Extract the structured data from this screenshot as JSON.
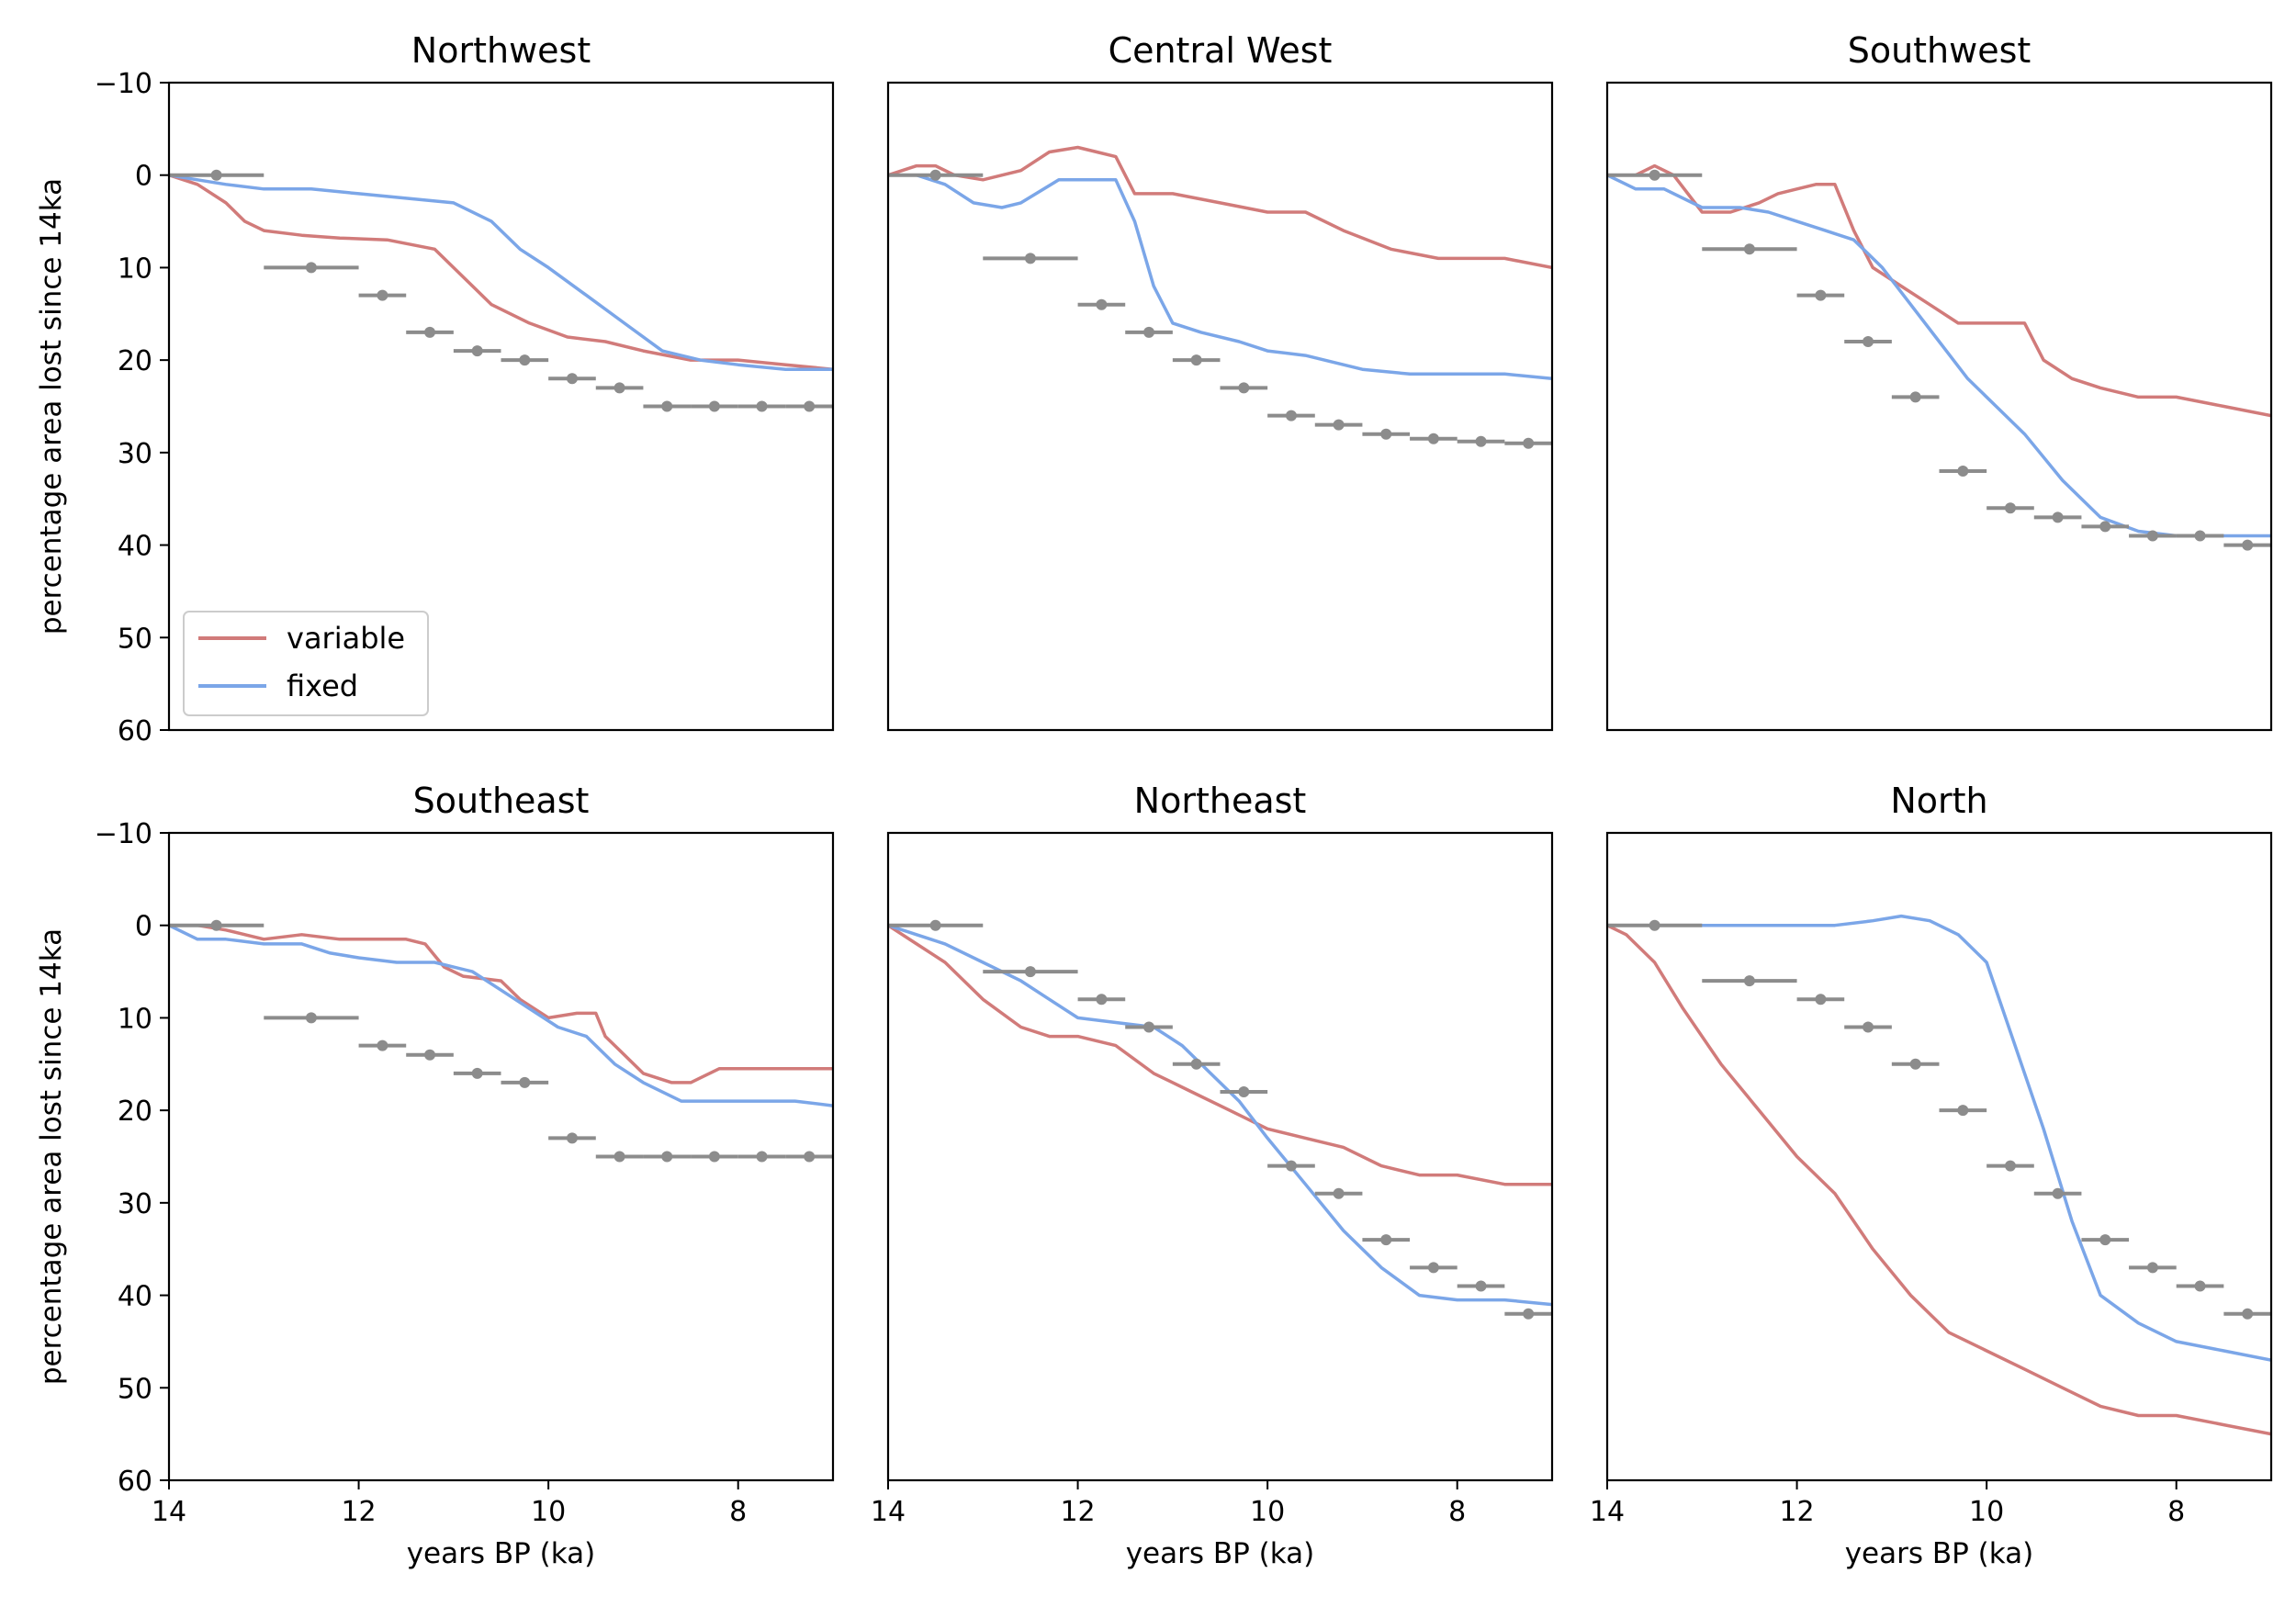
{
  "chart_data": {
    "type": "line",
    "layout": "2x3 grid, shared x and y axes",
    "xlabel": "years BP (ka)",
    "ylabel": "percentage area lost since 14ka",
    "xlim": [
      14,
      7
    ],
    "ylim": [
      60,
      -10
    ],
    "x_ticks": [
      14,
      12,
      10,
      8
    ],
    "y_ticks": [
      -10,
      0,
      10,
      20,
      30,
      40,
      50,
      60
    ],
    "y_tick_labels": [
      "−10",
      "0",
      "10",
      "20",
      "30",
      "40",
      "50",
      "60"
    ],
    "grid": false,
    "legend": {
      "location": "lower-left of first panel",
      "entries": [
        "variable",
        "fixed"
      ]
    },
    "colors": {
      "variable": "#d17b7a",
      "fixed": "#7ba6e8",
      "observations": "#8c8c8c"
    },
    "panels": [
      {
        "title": "Northwest",
        "series": [
          {
            "name": "variable",
            "x": [
              14,
              13.7,
              13.4,
              13.2,
              13.0,
              12.6,
              12.2,
              11.7,
              11.2,
              10.9,
              10.6,
              10.2,
              9.8,
              9.4,
              9.0,
              8.5,
              8.0,
              7.5,
              7.0
            ],
            "y": [
              0,
              1,
              3,
              5,
              6,
              6.5,
              6.8,
              7,
              8,
              11,
              14,
              16,
              17.5,
              18,
              19,
              20,
              20,
              20.5,
              21
            ]
          },
          {
            "name": "fixed",
            "x": [
              14,
              13.7,
              13.4,
              13.0,
              12.5,
              12.0,
              11.5,
              11.0,
              10.6,
              10.3,
              10.0,
              9.6,
              9.2,
              8.8,
              8.4,
              8.0,
              7.5,
              7.0
            ],
            "y": [
              0,
              0.5,
              1,
              1.5,
              1.5,
              2,
              2.5,
              3,
              5,
              8,
              10,
              13,
              16,
              19,
              20,
              20.5,
              21,
              21
            ]
          },
          {
            "name": "observations",
            "x": [
              13.5,
              12.5,
              11.75,
              11.25,
              10.75,
              10.25,
              9.75,
              9.25,
              8.75,
              8.25,
              7.75,
              7.25
            ],
            "y": [
              0,
              10,
              13,
              17,
              19,
              20,
              22,
              23,
              25,
              25,
              25,
              25
            ],
            "xerr": [
              0.5,
              0.5,
              0.25,
              0.25,
              0.25,
              0.25,
              0.25,
              0.25,
              0.25,
              0.25,
              0.25,
              0.25
            ]
          }
        ]
      },
      {
        "title": "Central West",
        "series": [
          {
            "name": "variable",
            "x": [
              14,
              13.7,
              13.5,
              13.3,
              13.0,
              12.6,
              12.3,
              12.0,
              11.8,
              11.6,
              11.4,
              11.0,
              10.5,
              10.0,
              9.6,
              9.2,
              8.7,
              8.2,
              7.5,
              7.0
            ],
            "y": [
              0,
              -1,
              -1,
              0,
              0.5,
              -0.5,
              -2.5,
              -3,
              -2.5,
              -2,
              2,
              2,
              3,
              4,
              4,
              6,
              8,
              9,
              9,
              10
            ]
          },
          {
            "name": "fixed",
            "x": [
              14,
              13.7,
              13.4,
              13.1,
              12.8,
              12.6,
              12.2,
              11.8,
              11.6,
              11.4,
              11.2,
              11.0,
              10.7,
              10.3,
              10.0,
              9.6,
              9.0,
              8.5,
              8.0,
              7.5,
              7.0
            ],
            "y": [
              0,
              0,
              1,
              3,
              3.5,
              3,
              0.5,
              0.5,
              0.5,
              5,
              12,
              16,
              17,
              18,
              19,
              19.5,
              21,
              21.5,
              21.5,
              21.5,
              22
            ]
          },
          {
            "name": "observations",
            "x": [
              13.5,
              12.5,
              11.75,
              11.25,
              10.75,
              10.25,
              9.75,
              9.25,
              8.75,
              8.25,
              7.75,
              7.25
            ],
            "y": [
              0,
              9,
              14,
              17,
              20,
              23,
              26,
              27,
              28,
              28.5,
              28.8,
              29
            ],
            "xerr": [
              0.5,
              0.5,
              0.25,
              0.25,
              0.25,
              0.25,
              0.25,
              0.25,
              0.25,
              0.25,
              0.25,
              0.25
            ]
          }
        ]
      },
      {
        "title": "Southwest",
        "series": [
          {
            "name": "variable",
            "x": [
              14,
              13.7,
              13.5,
              13.3,
              13.0,
              12.7,
              12.4,
              12.2,
              12.0,
              11.8,
              11.6,
              11.4,
              11.2,
              10.9,
              10.6,
              10.3,
              9.9,
              9.6,
              9.4,
              9.1,
              8.8,
              8.4,
              8.0,
              7.5,
              7.0
            ],
            "y": [
              0,
              0,
              -1,
              0,
              4,
              4,
              3,
              2,
              1.5,
              1,
              1,
              6,
              10,
              12,
              14,
              16,
              16,
              16,
              20,
              22,
              23,
              24,
              24,
              25,
              26
            ]
          },
          {
            "name": "fixed",
            "x": [
              14,
              13.7,
              13.4,
              13.0,
              12.6,
              12.3,
              12.0,
              11.7,
              11.4,
              11.1,
              10.8,
              10.5,
              10.2,
              9.9,
              9.6,
              9.2,
              8.8,
              8.4,
              8.0,
              7.5,
              7.0
            ],
            "y": [
              0,
              1.5,
              1.5,
              3.5,
              3.5,
              4,
              5,
              6,
              7,
              10,
              14,
              18,
              22,
              25,
              28,
              33,
              37,
              38.5,
              39,
              39,
              39
            ]
          },
          {
            "name": "observations",
            "x": [
              13.5,
              12.5,
              11.75,
              11.25,
              10.75,
              10.25,
              9.75,
              9.25,
              8.75,
              8.25,
              7.75,
              7.25
            ],
            "y": [
              0,
              8,
              13,
              18,
              24,
              32,
              36,
              37,
              38,
              39,
              39,
              40
            ],
            "xerr": [
              0.5,
              0.5,
              0.25,
              0.25,
              0.25,
              0.25,
              0.25,
              0.25,
              0.25,
              0.25,
              0.25,
              0.25
            ]
          }
        ]
      },
      {
        "title": "Southeast",
        "series": [
          {
            "name": "variable",
            "x": [
              14,
              13.7,
              13.4,
              13.0,
              12.6,
              12.2,
              11.8,
              11.5,
              11.3,
              11.1,
              10.9,
              10.5,
              10.3,
              10.0,
              9.7,
              9.5,
              9.4,
              9.2,
              9.0,
              8.7,
              8.5,
              8.2,
              7.8,
              7.4,
              7.0
            ],
            "y": [
              0,
              0,
              0.5,
              1.5,
              1,
              1.5,
              1.5,
              1.5,
              2,
              4.5,
              5.5,
              6,
              8,
              10,
              9.5,
              9.5,
              12,
              14,
              16,
              17,
              17,
              15.5,
              15.5,
              15.5,
              15.5
            ]
          },
          {
            "name": "fixed",
            "x": [
              14,
              13.7,
              13.4,
              13.0,
              12.6,
              12.3,
              12.0,
              11.6,
              11.2,
              10.8,
              10.5,
              10.2,
              9.9,
              9.6,
              9.3,
              9.0,
              8.6,
              8.2,
              7.8,
              7.4,
              7.0
            ],
            "y": [
              0,
              1.5,
              1.5,
              2,
              2,
              3,
              3.5,
              4,
              4,
              5,
              7,
              9,
              11,
              12,
              15,
              17,
              19,
              19,
              19,
              19,
              19.5
            ]
          },
          {
            "name": "observations",
            "x": [
              13.5,
              12.5,
              11.75,
              11.25,
              10.75,
              10.25,
              9.75,
              9.25,
              8.75,
              8.25,
              7.75,
              7.25
            ],
            "y": [
              0,
              10,
              13,
              14,
              16,
              17,
              23,
              25,
              25,
              25,
              25,
              25
            ],
            "xerr": [
              0.5,
              0.5,
              0.25,
              0.25,
              0.25,
              0.25,
              0.25,
              0.25,
              0.25,
              0.25,
              0.25,
              0.25
            ]
          }
        ]
      },
      {
        "title": "Northeast",
        "series": [
          {
            "name": "variable",
            "x": [
              14,
              13.7,
              13.4,
              13.0,
              12.6,
              12.3,
              12.0,
              11.6,
              11.2,
              10.8,
              10.4,
              10.0,
              9.6,
              9.2,
              8.8,
              8.4,
              8.0,
              7.5,
              7.0
            ],
            "y": [
              0,
              2,
              4,
              8,
              11,
              12,
              12,
              13,
              16,
              18,
              20,
              22,
              23,
              24,
              26,
              27,
              27,
              28,
              28
            ]
          },
          {
            "name": "fixed",
            "x": [
              14,
              13.7,
              13.4,
              13.0,
              12.6,
              12.3,
              12.0,
              11.6,
              11.2,
              10.9,
              10.6,
              10.3,
              10.0,
              9.6,
              9.2,
              8.8,
              8.4,
              8.0,
              7.5,
              7.0
            ],
            "y": [
              0,
              1,
              2,
              4,
              6,
              8,
              10,
              10.5,
              11,
              13,
              16,
              19,
              23,
              28,
              33,
              37,
              40,
              40.5,
              40.5,
              41
            ]
          },
          {
            "name": "observations",
            "x": [
              13.5,
              12.5,
              11.75,
              11.25,
              10.75,
              10.25,
              9.75,
              9.25,
              8.75,
              8.25,
              7.75,
              7.25
            ],
            "y": [
              0,
              5,
              8,
              11,
              15,
              18,
              26,
              29,
              34,
              37,
              39,
              42
            ],
            "xerr": [
              0.5,
              0.5,
              0.25,
              0.25,
              0.25,
              0.25,
              0.25,
              0.25,
              0.25,
              0.25,
              0.25,
              0.25
            ]
          }
        ]
      },
      {
        "title": "North",
        "series": [
          {
            "name": "variable",
            "x": [
              14,
              13.8,
              13.5,
              13.2,
              12.8,
              12.4,
              12.0,
              11.6,
              11.2,
              10.8,
              10.4,
              10.0,
              9.6,
              9.2,
              8.8,
              8.4,
              8.0,
              7.5,
              7.0
            ],
            "y": [
              0,
              1,
              4,
              9,
              15,
              20,
              25,
              29,
              35,
              40,
              44,
              46,
              48,
              50,
              52,
              53,
              53,
              54,
              55
            ]
          },
          {
            "name": "fixed",
            "x": [
              14,
              13.6,
              13.2,
              12.8,
              12.4,
              12.0,
              11.6,
              11.2,
              10.9,
              10.6,
              10.3,
              10.0,
              9.7,
              9.4,
              9.1,
              8.8,
              8.4,
              8.0,
              7.5,
              7.0
            ],
            "y": [
              0,
              0,
              0,
              0,
              0,
              0,
              0,
              -0.5,
              -1,
              -0.5,
              1,
              4,
              13,
              22,
              32,
              40,
              43,
              45,
              46,
              47
            ]
          },
          {
            "name": "observations",
            "x": [
              13.5,
              12.5,
              11.75,
              11.25,
              10.75,
              10.25,
              9.75,
              9.25,
              8.75,
              8.25,
              7.75,
              7.25
            ],
            "y": [
              0,
              6,
              8,
              11,
              15,
              20,
              26,
              29,
              34,
              37,
              39,
              42
            ],
            "xerr": [
              0.5,
              0.5,
              0.25,
              0.25,
              0.25,
              0.25,
              0.25,
              0.25,
              0.25,
              0.25,
              0.25,
              0.25
            ]
          }
        ]
      }
    ]
  }
}
